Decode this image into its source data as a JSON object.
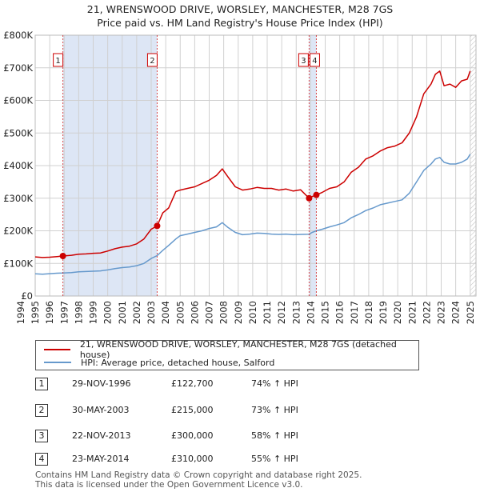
{
  "chart_data": {
    "type": "line",
    "title": "21, WRENSWOOD DRIVE, WORSLEY, MANCHESTER, M28 7GS",
    "subtitle": "Price paid vs. HM Land Registry's House Price Index (HPI)",
    "xlim": [
      1995,
      2025.4
    ],
    "ylim": [
      0,
      800000
    ],
    "y_ticks": [
      {
        "value": 0,
        "label": "£0"
      },
      {
        "value": 100000,
        "label": "£100K"
      },
      {
        "value": 200000,
        "label": "£200K"
      },
      {
        "value": 300000,
        "label": "£300K"
      },
      {
        "value": 400000,
        "label": "£400K"
      },
      {
        "value": 500000,
        "label": "£500K"
      },
      {
        "value": 600000,
        "label": "£600K"
      },
      {
        "value": 700000,
        "label": "£700K"
      },
      {
        "value": 800000,
        "label": "£800K"
      }
    ],
    "x_ticks": [
      "1994",
      "1995",
      "1996",
      "1997",
      "1998",
      "1999",
      "2000",
      "2001",
      "2002",
      "2003",
      "2004",
      "2005",
      "2006",
      "2007",
      "2008",
      "2009",
      "2010",
      "2011",
      "2012",
      "2013",
      "2014",
      "2015",
      "2016",
      "2017",
      "2018",
      "2019",
      "2020",
      "2021",
      "2022",
      "2023",
      "2024",
      "2025"
    ],
    "series": [
      {
        "name": "21, WRENSWOOD DRIVE, WORSLEY, MANCHESTER, M28 7GS (detached house)",
        "color": "#cc0000",
        "points": [
          [
            1995.0,
            120000
          ],
          [
            1995.5,
            118000
          ],
          [
            1996.0,
            119000
          ],
          [
            1996.5,
            121000
          ],
          [
            1996.91,
            122700
          ],
          [
            1997.5,
            125000
          ],
          [
            1998.0,
            128000
          ],
          [
            1998.5,
            129000
          ],
          [
            1999.0,
            131000
          ],
          [
            1999.5,
            132000
          ],
          [
            2000.0,
            138000
          ],
          [
            2000.5,
            145000
          ],
          [
            2001.0,
            150000
          ],
          [
            2001.5,
            153000
          ],
          [
            2002.0,
            160000
          ],
          [
            2002.5,
            175000
          ],
          [
            2003.0,
            205000
          ],
          [
            2003.41,
            215000
          ],
          [
            2003.8,
            255000
          ],
          [
            2004.2,
            270000
          ],
          [
            2004.7,
            320000
          ],
          [
            2005.0,
            325000
          ],
          [
            2005.5,
            330000
          ],
          [
            2006.0,
            335000
          ],
          [
            2006.5,
            345000
          ],
          [
            2007.0,
            355000
          ],
          [
            2007.5,
            370000
          ],
          [
            2007.9,
            390000
          ],
          [
            2008.3,
            365000
          ],
          [
            2008.8,
            335000
          ],
          [
            2009.3,
            325000
          ],
          [
            2009.8,
            328000
          ],
          [
            2010.3,
            333000
          ],
          [
            2010.8,
            330000
          ],
          [
            2011.3,
            330000
          ],
          [
            2011.8,
            325000
          ],
          [
            2012.3,
            328000
          ],
          [
            2012.8,
            322000
          ],
          [
            2013.3,
            326000
          ],
          [
            2013.89,
            300000
          ],
          [
            2014.1,
            305000
          ],
          [
            2014.39,
            310000
          ],
          [
            2014.8,
            318000
          ],
          [
            2015.3,
            330000
          ],
          [
            2015.8,
            335000
          ],
          [
            2016.3,
            350000
          ],
          [
            2016.8,
            380000
          ],
          [
            2017.3,
            395000
          ],
          [
            2017.8,
            420000
          ],
          [
            2018.3,
            430000
          ],
          [
            2018.8,
            445000
          ],
          [
            2019.3,
            455000
          ],
          [
            2019.8,
            460000
          ],
          [
            2020.3,
            470000
          ],
          [
            2020.8,
            500000
          ],
          [
            2021.3,
            550000
          ],
          [
            2021.8,
            620000
          ],
          [
            2022.3,
            650000
          ],
          [
            2022.6,
            680000
          ],
          [
            2022.9,
            690000
          ],
          [
            2023.2,
            645000
          ],
          [
            2023.6,
            650000
          ],
          [
            2024.0,
            640000
          ],
          [
            2024.4,
            660000
          ],
          [
            2024.8,
            665000
          ],
          [
            2025.0,
            690000
          ]
        ]
      },
      {
        "name": "HPI: Average price, detached house, Salford",
        "color": "#6699cc",
        "points": [
          [
            1995.0,
            68000
          ],
          [
            1995.5,
            67000
          ],
          [
            1996.0,
            68500
          ],
          [
            1996.5,
            70000
          ],
          [
            1996.91,
            70500
          ],
          [
            1997.5,
            72000
          ],
          [
            1998.0,
            74000
          ],
          [
            1998.5,
            75000
          ],
          [
            1999.0,
            76000
          ],
          [
            1999.5,
            77000
          ],
          [
            2000.0,
            80000
          ],
          [
            2000.5,
            84000
          ],
          [
            2001.0,
            87000
          ],
          [
            2001.5,
            89000
          ],
          [
            2002.0,
            93000
          ],
          [
            2002.5,
            100000
          ],
          [
            2003.0,
            115000
          ],
          [
            2003.41,
            124000
          ],
          [
            2003.8,
            140000
          ],
          [
            2004.2,
            155000
          ],
          [
            2004.7,
            175000
          ],
          [
            2005.0,
            185000
          ],
          [
            2005.5,
            190000
          ],
          [
            2006.0,
            195000
          ],
          [
            2006.5,
            200000
          ],
          [
            2007.0,
            207000
          ],
          [
            2007.5,
            212000
          ],
          [
            2007.9,
            225000
          ],
          [
            2008.3,
            210000
          ],
          [
            2008.8,
            195000
          ],
          [
            2009.3,
            188000
          ],
          [
            2009.8,
            190000
          ],
          [
            2010.3,
            193000
          ],
          [
            2010.8,
            192000
          ],
          [
            2011.3,
            190000
          ],
          [
            2011.8,
            189000
          ],
          [
            2012.3,
            190000
          ],
          [
            2012.8,
            188000
          ],
          [
            2013.3,
            189000
          ],
          [
            2013.89,
            189500
          ],
          [
            2014.1,
            195000
          ],
          [
            2014.39,
            200000
          ],
          [
            2014.8,
            205000
          ],
          [
            2015.3,
            212000
          ],
          [
            2015.8,
            218000
          ],
          [
            2016.3,
            225000
          ],
          [
            2016.8,
            240000
          ],
          [
            2017.3,
            250000
          ],
          [
            2017.8,
            262000
          ],
          [
            2018.3,
            270000
          ],
          [
            2018.8,
            280000
          ],
          [
            2019.3,
            285000
          ],
          [
            2019.8,
            290000
          ],
          [
            2020.3,
            295000
          ],
          [
            2020.8,
            315000
          ],
          [
            2021.3,
            350000
          ],
          [
            2021.8,
            385000
          ],
          [
            2022.3,
            405000
          ],
          [
            2022.6,
            420000
          ],
          [
            2022.9,
            425000
          ],
          [
            2023.2,
            410000
          ],
          [
            2023.6,
            405000
          ],
          [
            2024.0,
            405000
          ],
          [
            2024.4,
            410000
          ],
          [
            2024.8,
            420000
          ],
          [
            2025.0,
            435000
          ]
        ]
      }
    ],
    "shaded_ranges": [
      [
        1996.91,
        2003.41
      ],
      [
        2013.89,
        2014.39
      ]
    ],
    "sales": [
      {
        "num": "1",
        "x": 1996.91,
        "y": 122700,
        "date": "29-NOV-1996",
        "price": "£122,700",
        "hpi": "74% ↑ HPI"
      },
      {
        "num": "2",
        "x": 2003.41,
        "y": 215000,
        "date": "30-MAY-2003",
        "price": "£215,000",
        "hpi": "73% ↑ HPI"
      },
      {
        "num": "3",
        "x": 2013.89,
        "y": 300000,
        "date": "22-NOV-2013",
        "price": "£300,000",
        "hpi": "58% ↑ HPI"
      },
      {
        "num": "4",
        "x": 2014.39,
        "y": 310000,
        "date": "23-MAY-2014",
        "price": "£310,000",
        "hpi": "55% ↑ HPI"
      }
    ],
    "colors": {
      "shade": "#dde6f5",
      "grid": "#d0d0d0",
      "marker_line": "#cc0000",
      "hatch": "#bbbbbb"
    }
  },
  "footer": {
    "line1": "Contains HM Land Registry data © Crown copyright and database right 2025.",
    "line2": "This data is licensed under the Open Government Licence v3.0."
  }
}
